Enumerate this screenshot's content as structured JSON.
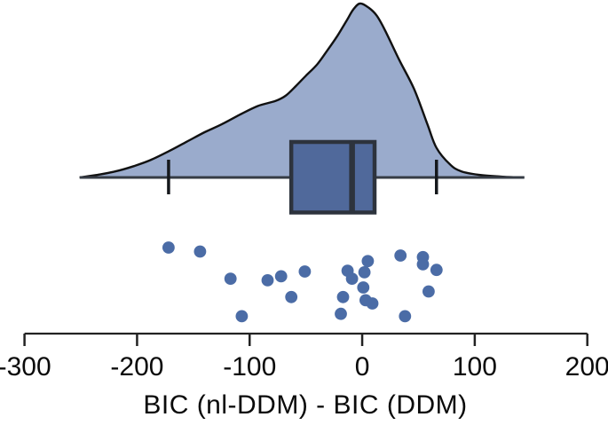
{
  "figure": {
    "background": "#ffffff"
  },
  "chart_data": {
    "type": "raincloud",
    "title": "",
    "xlabel": "BIC (nl-DDM) - BIC (DDM)",
    "ylabel": "",
    "xlim": [
      -300,
      200
    ],
    "x_ticks": [
      -300,
      -200,
      -100,
      0,
      100,
      200
    ],
    "x_tick_labels": [
      "-300",
      "-200",
      "-100",
      "0",
      "100",
      "200"
    ],
    "grid": false,
    "legend": "none",
    "n_points": 23,
    "box": {
      "whisker_low": -172,
      "q1": -63,
      "median": -9,
      "q3": 11,
      "whisker_high": 66
    },
    "density": {
      "range": [
        -251,
        144
      ],
      "peak_x": -2,
      "x": [
        -251,
        -235,
        -219,
        -203,
        -188,
        -172,
        -156,
        -140,
        -125,
        -109,
        -93,
        -77,
        -68,
        -59,
        -50,
        -40,
        -31,
        -22,
        -14,
        -8,
        -2,
        6,
        13,
        20,
        33,
        46,
        58,
        66,
        78,
        88,
        104,
        125,
        144
      ],
      "height": [
        0,
        0.015,
        0.035,
        0.065,
        0.1,
        0.15,
        0.205,
        0.26,
        0.305,
        0.36,
        0.41,
        0.44,
        0.47,
        0.525,
        0.585,
        0.65,
        0.73,
        0.815,
        0.9,
        0.965,
        1.0,
        0.975,
        0.93,
        0.85,
        0.675,
        0.51,
        0.305,
        0.17,
        0.075,
        0.035,
        0.015,
        0.004,
        0
      ]
    },
    "points": [
      {
        "x": -172,
        "jitter": 0.1
      },
      {
        "x": -144,
        "jitter": 0.15
      },
      {
        "x": -117,
        "jitter": 0.49
      },
      {
        "x": -107,
        "jitter": 0.96
      },
      {
        "x": -84,
        "jitter": 0.51
      },
      {
        "x": -72,
        "jitter": 0.46
      },
      {
        "x": -63,
        "jitter": 0.72
      },
      {
        "x": -51,
        "jitter": 0.4
      },
      {
        "x": -19,
        "jitter": 0.93
      },
      {
        "x": -17,
        "jitter": 0.72
      },
      {
        "x": -13,
        "jitter": 0.39
      },
      {
        "x": -9,
        "jitter": 0.49
      },
      {
        "x": 1,
        "jitter": 0.6
      },
      {
        "x": 2,
        "jitter": 0.41
      },
      {
        "x": 3,
        "jitter": 0.76
      },
      {
        "x": 5,
        "jitter": 0.27
      },
      {
        "x": 9,
        "jitter": 0.8
      },
      {
        "x": 34,
        "jitter": 0.2
      },
      {
        "x": 38,
        "jitter": 0.96
      },
      {
        "x": 54,
        "jitter": 0.22
      },
      {
        "x": 54,
        "jitter": 0.31
      },
      {
        "x": 59,
        "jitter": 0.65
      },
      {
        "x": 66,
        "jitter": 0.38
      }
    ],
    "colors": {
      "density_fill": "#9aabcc",
      "density_stroke": "#111111",
      "box_fill": "#50699b",
      "box_stroke": "#2d333d",
      "median_stroke": "#2d333d",
      "baseline": "#363c45",
      "whisker_cap": "#15181c",
      "point_fill": "#4b6ca6",
      "axis": "#222222",
      "tick_label": "#0a0a0a"
    }
  }
}
